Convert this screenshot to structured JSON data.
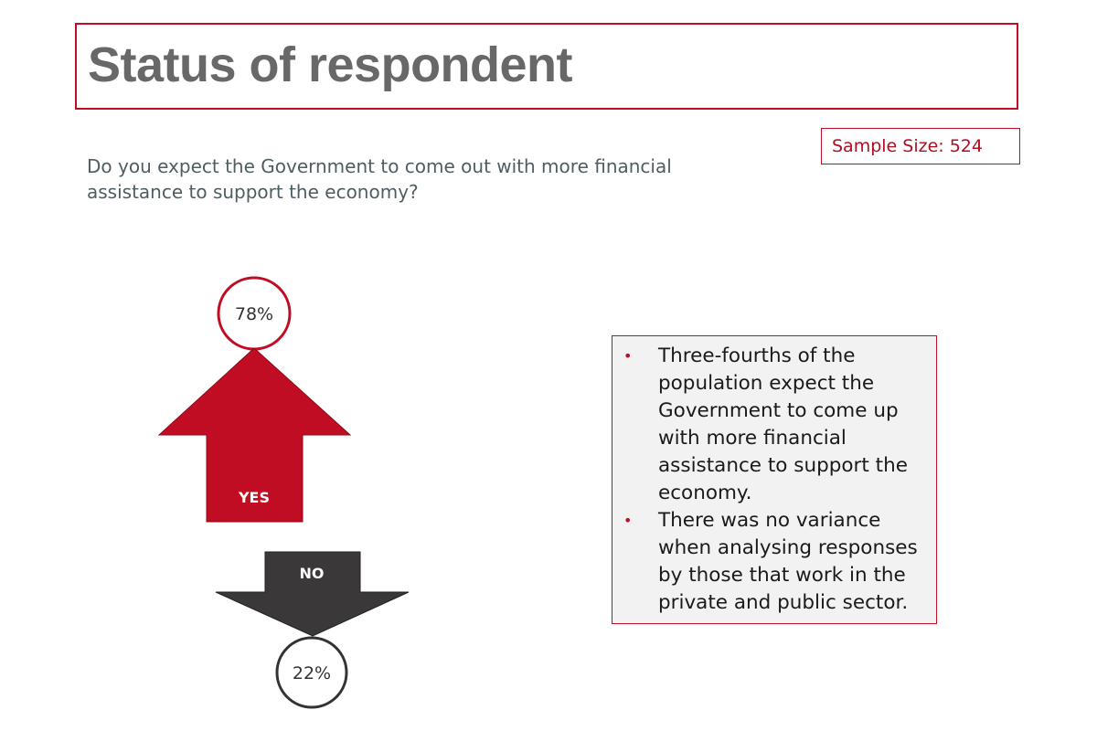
{
  "title": "Status of respondent",
  "sample_size": "Sample Size: 524",
  "question": "Do you expect the Government to come out with more financial assistance to support the economy?",
  "diagram": {
    "yes": {
      "label": "YES",
      "percent": "78%",
      "color": "#c00d23",
      "value": 78
    },
    "no": {
      "label": "NO",
      "percent": "22%",
      "color": "#3a3839",
      "value": 22
    }
  },
  "bullets": [
    "Three-fourths  of the population expect the Government to come up with more financial assistance to support the economy.",
    "There was no variance when analysing responses by those that work in the private and public sector."
  ],
  "colors": {
    "accent": "#c00d23",
    "title_text": "#686868",
    "question_text": "#4f5d63",
    "panel_bg": "#f2f2f2"
  }
}
